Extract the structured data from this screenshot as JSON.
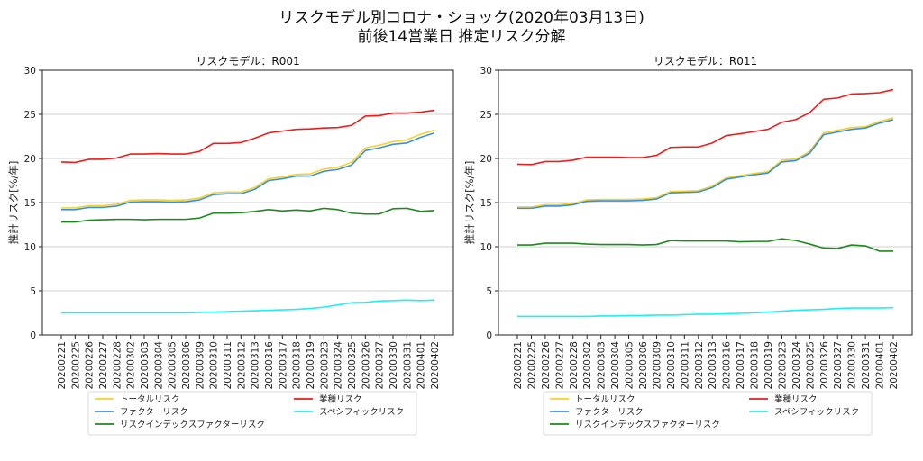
{
  "suptitle_line1": "リスクモデル別コロナ・ショック(2020年03月13日)",
  "suptitle_line2": "前後14営業日 推定リスク分解",
  "chart_data": [
    {
      "type": "line",
      "title": "リスクモデル：R001",
      "xlabel": "",
      "ylabel": "推計リスク[%/年]",
      "ylim": [
        0,
        30
      ],
      "yticks": [
        0,
        5,
        10,
        15,
        20,
        25,
        30
      ],
      "grid": "horizontal",
      "legend_position": "bottom-center",
      "x": [
        "20200221",
        "20200225",
        "20200226",
        "20200227",
        "20200228",
        "20200302",
        "20200303",
        "20200304",
        "20200305",
        "20200306",
        "20200309",
        "20200310",
        "20200311",
        "20200312",
        "20200313",
        "20200316",
        "20200317",
        "20200318",
        "20200319",
        "20200323",
        "20200324",
        "20200325",
        "20200326",
        "20200327",
        "20200330",
        "20200331",
        "20200401",
        "20200402"
      ],
      "series": [
        {
          "name": "トータルリスク",
          "color": "#f5d327",
          "values": [
            14.4,
            14.4,
            14.65,
            14.65,
            14.8,
            15.25,
            15.3,
            15.3,
            15.25,
            15.3,
            15.5,
            16.1,
            16.2,
            16.2,
            16.7,
            17.7,
            17.9,
            18.2,
            18.25,
            18.8,
            19.0,
            19.55,
            21.2,
            21.5,
            21.9,
            22.1,
            22.75,
            23.2
          ]
        },
        {
          "name": "ファクターリスク",
          "color": "#3b8fe0",
          "values": [
            14.2,
            14.2,
            14.45,
            14.45,
            14.6,
            15.05,
            15.1,
            15.1,
            15.05,
            15.1,
            15.3,
            15.9,
            16.0,
            16.0,
            16.5,
            17.5,
            17.7,
            18.0,
            18.0,
            18.55,
            18.75,
            19.25,
            20.9,
            21.2,
            21.6,
            21.75,
            22.4,
            22.9
          ]
        },
        {
          "name": "リスクインデックスファクターリスク",
          "color": "#1e8a1e",
          "values": [
            12.8,
            12.8,
            13.0,
            13.05,
            13.1,
            13.1,
            13.05,
            13.1,
            13.1,
            13.1,
            13.25,
            13.8,
            13.8,
            13.85,
            14.0,
            14.2,
            14.05,
            14.15,
            14.05,
            14.35,
            14.2,
            13.8,
            13.7,
            13.7,
            14.3,
            14.35,
            14.0,
            14.1
          ]
        },
        {
          "name": "業種リスク",
          "color": "#ee1c1c",
          "values": [
            19.6,
            19.55,
            19.9,
            19.9,
            20.05,
            20.5,
            20.5,
            20.55,
            20.5,
            20.5,
            20.8,
            21.7,
            21.7,
            21.8,
            22.3,
            22.9,
            23.1,
            23.3,
            23.35,
            23.45,
            23.5,
            23.75,
            24.8,
            24.85,
            25.15,
            25.15,
            25.25,
            25.45
          ]
        },
        {
          "name": "スペシフィックリスク",
          "color": "#1ef0f0",
          "values": [
            2.5,
            2.5,
            2.5,
            2.5,
            2.5,
            2.5,
            2.5,
            2.5,
            2.5,
            2.5,
            2.55,
            2.6,
            2.65,
            2.7,
            2.75,
            2.8,
            2.85,
            2.9,
            3.0,
            3.15,
            3.4,
            3.65,
            3.7,
            3.85,
            3.9,
            3.95,
            3.9,
            3.95
          ]
        }
      ]
    },
    {
      "type": "line",
      "title": "リスクモデル：R011",
      "xlabel": "",
      "ylabel": "推計リスク[%/年]",
      "ylim": [
        0,
        30
      ],
      "yticks": [
        0,
        5,
        10,
        15,
        20,
        25,
        30
      ],
      "grid": "horizontal",
      "legend_position": "bottom-center",
      "x": [
        "20200221",
        "20200225",
        "20200226",
        "20200227",
        "20200228",
        "20200302",
        "20200303",
        "20200304",
        "20200305",
        "20200306",
        "20200309",
        "20200310",
        "20200311",
        "20200312",
        "20200313",
        "20200316",
        "20200317",
        "20200318",
        "20200319",
        "20200323",
        "20200324",
        "20200325",
        "20200326",
        "20200327",
        "20200330",
        "20200331",
        "20200401",
        "20200402"
      ],
      "series": [
        {
          "name": "トータルリスク",
          "color": "#f5d327",
          "values": [
            14.5,
            14.5,
            14.75,
            14.75,
            14.9,
            15.3,
            15.35,
            15.35,
            15.35,
            15.4,
            15.55,
            16.25,
            16.3,
            16.35,
            16.85,
            17.8,
            18.05,
            18.3,
            18.5,
            19.8,
            19.9,
            20.8,
            22.9,
            23.2,
            23.5,
            23.6,
            24.2,
            24.6
          ]
        },
        {
          "name": "ファクターリスク",
          "color": "#3b8fe0",
          "values": [
            14.35,
            14.35,
            14.6,
            14.6,
            14.75,
            15.15,
            15.2,
            15.2,
            15.2,
            15.25,
            15.4,
            16.1,
            16.15,
            16.2,
            16.7,
            17.65,
            17.9,
            18.15,
            18.35,
            19.6,
            19.75,
            20.6,
            22.7,
            23.0,
            23.3,
            23.45,
            24.0,
            24.4
          ]
        },
        {
          "name": "リスクインデックスファクターリスク",
          "color": "#1e8a1e",
          "values": [
            10.2,
            10.2,
            10.4,
            10.4,
            10.4,
            10.3,
            10.25,
            10.25,
            10.25,
            10.2,
            10.25,
            10.7,
            10.65,
            10.65,
            10.65,
            10.65,
            10.55,
            10.6,
            10.6,
            10.9,
            10.7,
            10.3,
            9.85,
            9.8,
            10.2,
            10.1,
            9.5,
            9.5
          ]
        },
        {
          "name": "業種リスク",
          "color": "#ee1c1c",
          "values": [
            19.35,
            19.3,
            19.65,
            19.65,
            19.8,
            20.15,
            20.15,
            20.15,
            20.1,
            20.1,
            20.35,
            21.25,
            21.3,
            21.3,
            21.75,
            22.6,
            22.8,
            23.05,
            23.3,
            24.1,
            24.4,
            25.2,
            26.7,
            26.85,
            27.3,
            27.35,
            27.45,
            27.8
          ]
        },
        {
          "name": "スペシフィックリスク",
          "color": "#1ef0f0",
          "values": [
            2.1,
            2.1,
            2.1,
            2.1,
            2.1,
            2.1,
            2.15,
            2.15,
            2.2,
            2.2,
            2.25,
            2.25,
            2.3,
            2.35,
            2.35,
            2.4,
            2.45,
            2.5,
            2.6,
            2.7,
            2.8,
            2.85,
            2.9,
            3.0,
            3.05,
            3.05,
            3.05,
            3.1
          ]
        }
      ]
    }
  ]
}
